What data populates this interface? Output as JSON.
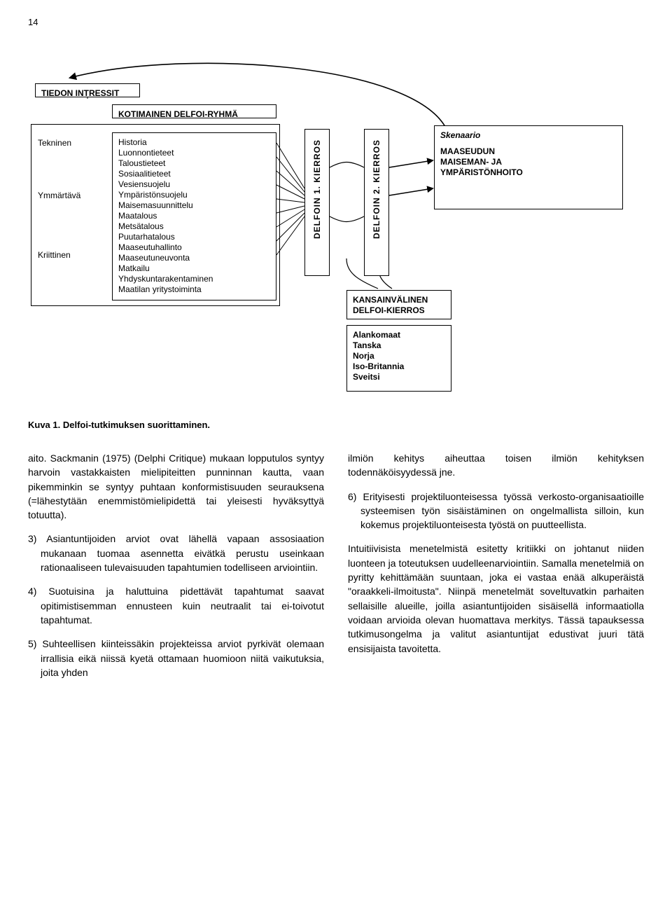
{
  "page_number": "14",
  "diagram": {
    "tiedon_intressit": "TIEDON INTRESSIT",
    "kotimainen": "KOTIMAINEN DELFOI-RYHMÄ",
    "interests": {
      "tekninen": "Tekninen",
      "ymmartava": "Ymmärtävä",
      "kriittinen": "Kriittinen"
    },
    "disciplines": [
      "Historia",
      "Luonnontieteet",
      "Taloustieteet",
      "Sosiaalitieteet",
      "Vesiensuojelu",
      "Ympäristönsuojelu",
      "Maisemasuunnittelu",
      "Maatalous",
      "Metsätalous",
      "Puutarhatalous",
      "Maaseutuhallinto",
      "Maaseutuneuvonta",
      "Matkailu",
      "Yhdyskuntarakentaminen",
      "Maatilan yritystoiminta"
    ],
    "kierros1": "DELFOIN 1. KIERROS",
    "kierros2": "DELFOIN 2. KIERROS",
    "skenaario_title": "Skenaario",
    "skenaario_lines": [
      "MAASEUDUN",
      "MAISEMAN- JA",
      "YMPÄRISTÖNHOITO"
    ],
    "kansainvalinen": [
      "KANSAINVÄLINEN",
      "DELFOI-KIERROS"
    ],
    "maat": [
      "Alankomaat",
      "Tanska",
      "Norja",
      "Iso-Britannia",
      "Sveitsi"
    ]
  },
  "caption": "Kuva 1. Delfoi-tutkimuksen suorittaminen.",
  "body": {
    "l1": "aito. Sackmanin (1975) (Delphi Critique) mukaan lopputulos syntyy harvoin vastakkaisten mielipiteitten punninnan kautta, vaan pikemminkin se syntyy puhtaan konformistisuuden seurauksena (=lähestytään enemmistömielipidettä tai yleisesti hyväksyttyä totuutta).",
    "l2": "3) Asiantuntijoiden arviot ovat lähellä vapaan assosiaation mukanaan tuomaa asennetta eivätkä perustu useinkaan rationaaliseen tulevaisuuden tapahtumien todelliseen arviointiin.",
    "l3": "4) Suotuisina ja haluttuina pidettävät tapahtumat saavat opitimistisemman ennusteen kuin neutraalit tai ei-toivotut tapahtumat.",
    "l4": "5) Suhteellisen kiinteissäkin projekteissa arviot pyrkivät olemaan irrallisia eikä niissä kyetä ottamaan huomioon niitä vaikutuksia, joita yhden",
    "r1": "ilmiön kehitys aiheuttaa toisen ilmiön kehityksen todennäköisyydessä jne.",
    "r2": "6) Erityisesti projektiluonteisessa työssä verkosto-organisaatioille systeemisen työn sisäistäminen on ongelmallista silloin, kun kokemus projektiluonteisesta työstä on puutteellista.",
    "r3": "Intuitiivisista menetelmistä esitetty kritiikki on johtanut niiden luonteen ja toteutuksen uudelleenarviointiin. Samalla menetelmiä on pyritty kehittämään suuntaan, joka ei vastaa enää alkuperäistä \"oraakkeli-ilmoitusta\". Niinpä menetelmät soveltuvatkin parhaiten sellaisille alueille, joilla asiantuntijoiden sisäisellä informaatiolla voidaan arvioida olevan huomattava merkitys. Tässä tapauksessa tutkimusongelma ja valitut asiantuntijat edustivat juuri tätä ensisijaista tavoitetta."
  },
  "style": {
    "font_body_pt": 14,
    "font_small_pt": 12,
    "line_color": "#000000",
    "bg": "#ffffff"
  }
}
